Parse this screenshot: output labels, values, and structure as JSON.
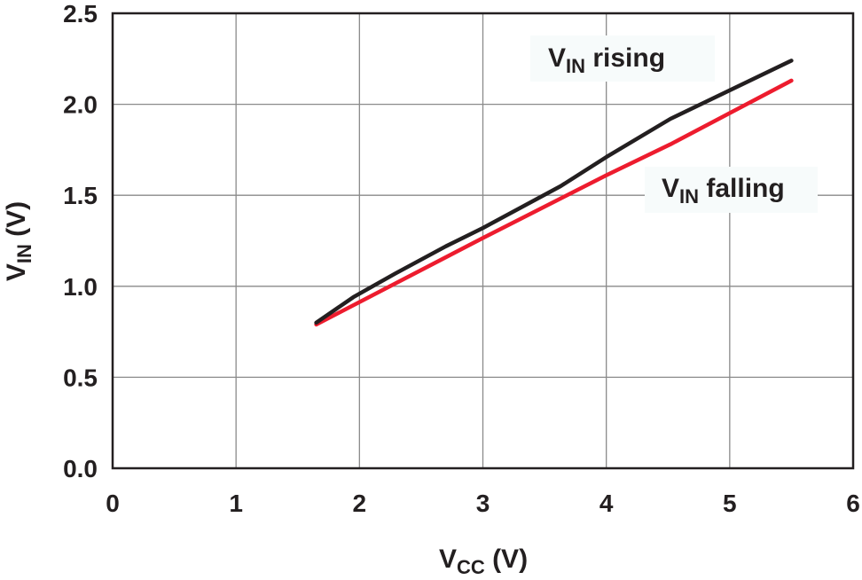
{
  "chart_data": {
    "type": "line",
    "title": "",
    "xlabel": {
      "main": "V",
      "sub": "CC",
      "unit": " (V)"
    },
    "ylabel": {
      "main": "V",
      "sub": "IN",
      "unit": " (V)"
    },
    "xlim": [
      0,
      6
    ],
    "ylim": [
      0,
      2.5
    ],
    "xticks": [
      "0",
      "1",
      "2",
      "3",
      "4",
      "5",
      "6"
    ],
    "yticks": [
      "0.0",
      "0.5",
      "1.0",
      "1.5",
      "2.0",
      "2.5"
    ],
    "grid": true,
    "series": [
      {
        "name": {
          "main": "V",
          "sub": "IN",
          "rest": " rising"
        },
        "color": "#231f20",
        "x": [
          1.65,
          1.95,
          2.29,
          2.7,
          3.0,
          3.63,
          4.0,
          4.52,
          5.5
        ],
        "y": [
          0.8,
          0.94,
          1.07,
          1.22,
          1.32,
          1.55,
          1.71,
          1.92,
          2.24
        ]
      },
      {
        "name": {
          "main": "V",
          "sub": "IN",
          "rest": " falling"
        },
        "color": "#ed1c2e",
        "x": [
          1.65,
          3.0,
          4.0,
          4.52,
          5.5
        ],
        "y": [
          0.79,
          1.265,
          1.61,
          1.78,
          2.13
        ]
      }
    ]
  }
}
